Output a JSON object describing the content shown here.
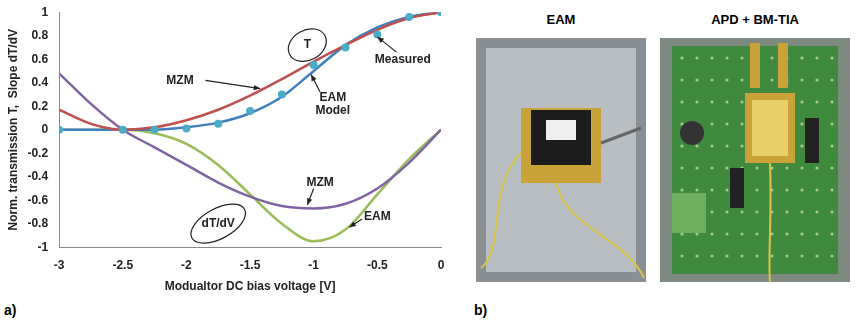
{
  "chart_data": {
    "type": "line",
    "x_label": "Modualtor DC bias voltage [V]",
    "y_label": "Norm. transmission T,  Slope dT/dV",
    "x": [
      -3,
      -2.75,
      -2.5,
      -2.25,
      -2,
      -1.75,
      -1.5,
      -1.25,
      -1,
      -0.75,
      -0.5,
      -0.25,
      0
    ],
    "series": [
      {
        "color": "#c0504d",
        "line_style": "solid",
        "marker": "none",
        "values": [
          0.17,
          0.05,
          0.0,
          0.02,
          0.08,
          0.17,
          0.29,
          0.43,
          0.58,
          0.72,
          0.85,
          0.95,
          1.0
        ]
      },
      {
        "color": "#3f7fc0",
        "line_style": "solid",
        "marker": "none",
        "values": [
          0,
          0,
          0,
          0,
          0.02,
          0.06,
          0.14,
          0.28,
          0.5,
          0.72,
          0.87,
          0.96,
          1.0
        ]
      },
      {
        "type": "scatter",
        "color": "#4bacc6",
        "marker": "circle",
        "values": [
          0,
          null,
          0,
          0,
          0.01,
          0.05,
          0.16,
          0.3,
          0.55,
          0.7,
          0.81,
          0.96,
          1.0
        ]
      },
      {
        "color": "#8064a2",
        "line_style": "solid",
        "marker": "none",
        "values": [
          0.48,
          0.22,
          0.0,
          -0.15,
          -0.3,
          -0.45,
          -0.57,
          -0.65,
          -0.67,
          -0.63,
          -0.5,
          -0.28,
          0
        ]
      },
      {
        "color": "#9bbb59",
        "line_style": "solid",
        "marker": "none",
        "values": [
          0,
          0,
          0,
          -0.03,
          -0.12,
          -0.3,
          -0.55,
          -0.8,
          -0.95,
          -0.85,
          -0.55,
          -0.25,
          0
        ]
      }
    ],
    "xlim": [
      -3,
      0
    ],
    "xticks": [
      -3,
      -2.5,
      -2,
      -1.5,
      -1,
      -0.5,
      0
    ],
    "ylim": [
      -1,
      1
    ],
    "yticks": [
      -1,
      -0.8,
      -0.6,
      -0.4,
      -0.2,
      0,
      0.2,
      0.4,
      0.6,
      0.8,
      1
    ],
    "grid": false,
    "annotations": [
      "T",
      "MZM",
      "EAM Model",
      "Measured",
      "MZM",
      "EAM",
      "dT/dV"
    ]
  },
  "panel_labels": [
    "a)",
    "b)"
  ],
  "photos": [
    {
      "title": "EAM"
    },
    {
      "title": "APD + BM-TIA"
    }
  ]
}
